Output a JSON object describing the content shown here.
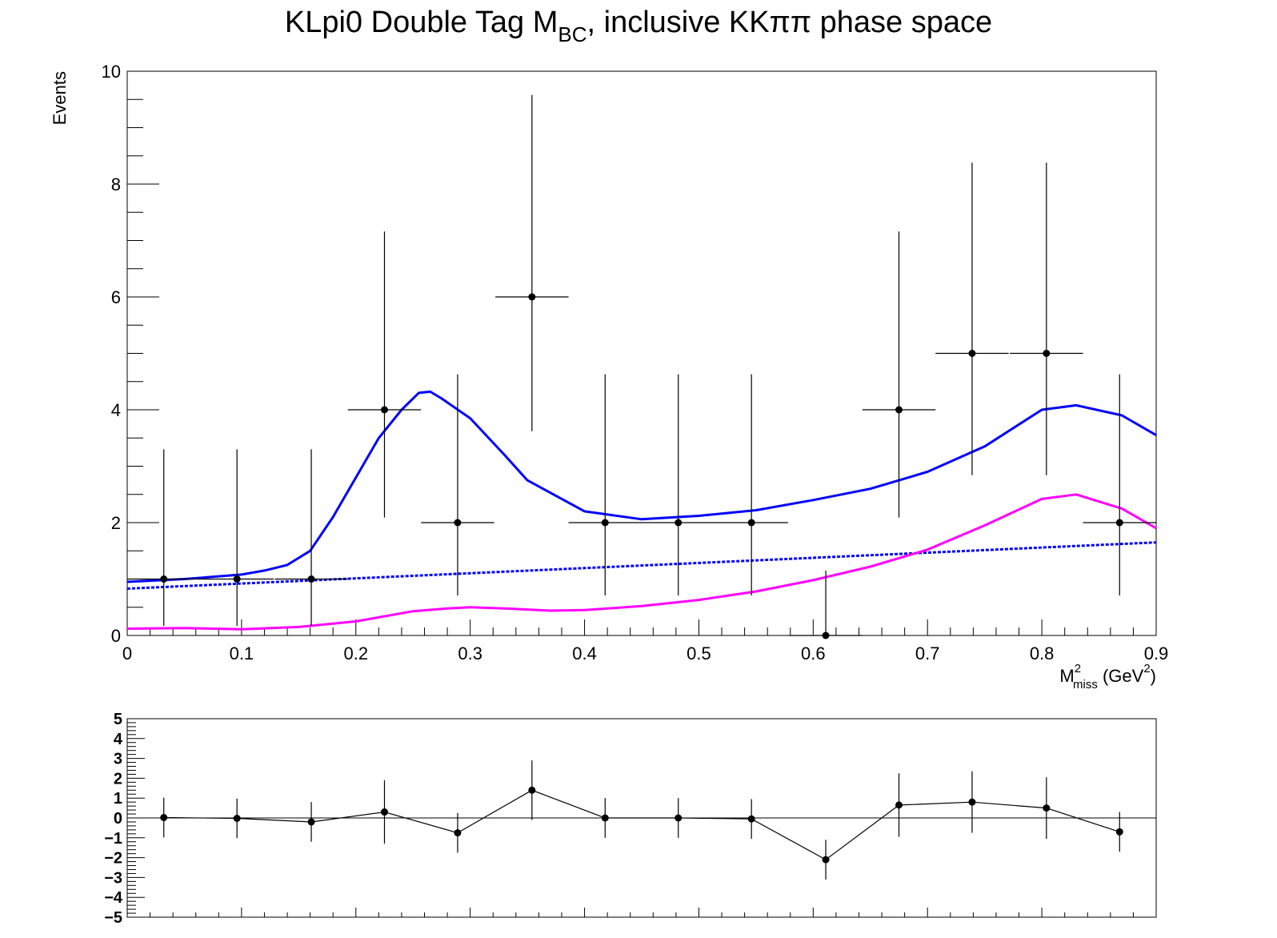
{
  "chart_data": [
    {
      "type": "scatter",
      "title": {
        "main": "KLpi0 Double Tag M",
        "subscript": "BC",
        "rest": ", inclusive KKππ phase space"
      },
      "xlabel": {
        "base": "M",
        "superscript": "2",
        "subscript": "miss",
        "unit_open": " (GeV",
        "unit_superscript": "2",
        "unit_close": ")"
      },
      "ylabel": "Events",
      "xlim": [
        0,
        0.9
      ],
      "ylim": [
        0,
        10
      ],
      "x_tick_labels": [
        "0",
        "0.1",
        "0.2",
        "0.3",
        "0.4",
        "0.5",
        "0.6",
        "0.7",
        "0.8",
        "0.9"
      ],
      "y_tick_labels": [
        "0",
        "2",
        "4",
        "6",
        "8",
        "10"
      ],
      "series": [
        {
          "kind": "data-points",
          "color": "#000000",
          "x_half_width": 0.032,
          "points": [
            {
              "x": 0.032,
              "y": 1,
              "err_low": 0.83,
              "err_high": 2.3
            },
            {
              "x": 0.096,
              "y": 1,
              "err_low": 0.83,
              "err_high": 2.3
            },
            {
              "x": 0.161,
              "y": 1,
              "err_low": 0.83,
              "err_high": 2.3
            },
            {
              "x": 0.225,
              "y": 4,
              "err_low": 1.91,
              "err_high": 3.16
            },
            {
              "x": 0.289,
              "y": 2,
              "err_low": 1.29,
              "err_high": 2.63
            },
            {
              "x": 0.354,
              "y": 6,
              "err_low": 2.38,
              "err_high": 3.58
            },
            {
              "x": 0.418,
              "y": 2,
              "err_low": 1.29,
              "err_high": 2.63
            },
            {
              "x": 0.482,
              "y": 2,
              "err_low": 1.29,
              "err_high": 2.63
            },
            {
              "x": 0.546,
              "y": 2,
              "err_low": 1.29,
              "err_high": 2.63
            },
            {
              "x": 0.611,
              "y": 0,
              "err_low": 0,
              "err_high": 1.15
            },
            {
              "x": 0.675,
              "y": 4,
              "err_low": 1.91,
              "err_high": 3.16
            },
            {
              "x": 0.739,
              "y": 5,
              "err_low": 2.16,
              "err_high": 3.38
            },
            {
              "x": 0.804,
              "y": 5,
              "err_low": 2.16,
              "err_high": 3.38
            },
            {
              "x": 0.868,
              "y": 2,
              "err_low": 1.29,
              "err_high": 2.63
            }
          ]
        },
        {
          "kind": "total-fit",
          "color": "#0000ff",
          "style": "solid",
          "x": [
            0,
            0.05,
            0.1,
            0.12,
            0.14,
            0.16,
            0.18,
            0.2,
            0.22,
            0.24,
            0.255,
            0.265,
            0.275,
            0.3,
            0.33,
            0.35,
            0.4,
            0.45,
            0.5,
            0.55,
            0.6,
            0.65,
            0.7,
            0.75,
            0.8,
            0.83,
            0.87,
            0.9
          ],
          "y": [
            0.95,
            1.0,
            1.08,
            1.15,
            1.25,
            1.5,
            2.1,
            2.8,
            3.5,
            4.0,
            4.3,
            4.32,
            4.2,
            3.85,
            3.2,
            2.75,
            2.2,
            2.06,
            2.12,
            2.22,
            2.4,
            2.6,
            2.9,
            3.35,
            4.0,
            4.08,
            3.9,
            3.55
          ]
        },
        {
          "kind": "background-component",
          "color": "#0000ff",
          "style": "dashed",
          "x": [
            0,
            0.9
          ],
          "y": [
            0.83,
            1.65
          ]
        },
        {
          "kind": "signal-component",
          "color": "#ff00ff",
          "style": "solid",
          "x": [
            0,
            0.05,
            0.1,
            0.15,
            0.2,
            0.25,
            0.28,
            0.3,
            0.33,
            0.37,
            0.4,
            0.45,
            0.5,
            0.55,
            0.6,
            0.65,
            0.7,
            0.75,
            0.8,
            0.83,
            0.87,
            0.9
          ],
          "y": [
            0.12,
            0.13,
            0.11,
            0.15,
            0.25,
            0.43,
            0.48,
            0.5,
            0.48,
            0.44,
            0.45,
            0.52,
            0.63,
            0.78,
            0.98,
            1.22,
            1.52,
            1.95,
            2.42,
            2.5,
            2.25,
            1.9
          ]
        }
      ]
    },
    {
      "type": "line",
      "role": "residuals",
      "xlim": [
        0,
        0.9
      ],
      "ylim": [
        -5,
        5
      ],
      "y_tick_labels": [
        "5",
        "4",
        "3",
        "2",
        "1",
        "0",
        "−1",
        "−2",
        "−3",
        "−4",
        "−5"
      ],
      "reference_line_y": 0,
      "color": "#000000",
      "points": [
        {
          "x": 0.032,
          "y": 0.02,
          "err": 1.0
        },
        {
          "x": 0.096,
          "y": -0.02,
          "err": 1.0
        },
        {
          "x": 0.161,
          "y": -0.2,
          "err": 1.0
        },
        {
          "x": 0.225,
          "y": 0.3,
          "err": 1.6
        },
        {
          "x": 0.289,
          "y": -0.75,
          "err": 1.0
        },
        {
          "x": 0.354,
          "y": 1.4,
          "err": 1.5
        },
        {
          "x": 0.418,
          "y": 0.0,
          "err": 1.0
        },
        {
          "x": 0.482,
          "y": 0.0,
          "err": 1.0
        },
        {
          "x": 0.546,
          "y": -0.05,
          "err": 1.0
        },
        {
          "x": 0.611,
          "y": -2.1,
          "err": 1.0
        },
        {
          "x": 0.675,
          "y": 0.65,
          "err": 1.6
        },
        {
          "x": 0.739,
          "y": 0.8,
          "err": 1.55
        },
        {
          "x": 0.804,
          "y": 0.5,
          "err": 1.55
        },
        {
          "x": 0.868,
          "y": -0.7,
          "err": 1.0
        }
      ]
    }
  ]
}
